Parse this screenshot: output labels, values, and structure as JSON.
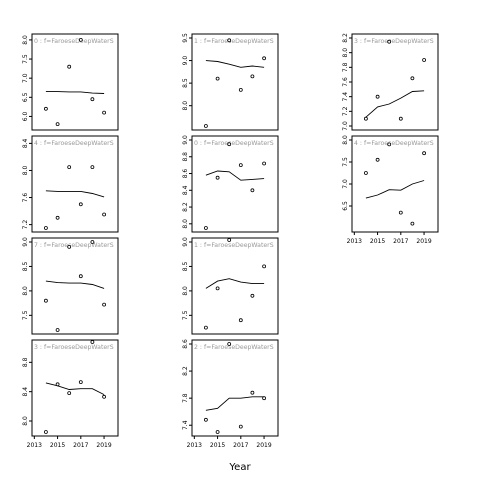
{
  "chart_data": {
    "type": "scatter",
    "xlabel": "Year",
    "panels": [
      {
        "label": "0 : f=FaroeseDeepWaterS",
        "x": [
          2014,
          2015,
          2016,
          2017,
          2018,
          2019
        ],
        "y": [
          6.2,
          5.8,
          7.3,
          8.0,
          6.45,
          6.1
        ],
        "smooth_y": [
          6.65,
          6.65,
          6.64,
          6.64,
          6.61,
          6.6
        ],
        "yticks": [
          6.0,
          6.5,
          7.0,
          7.5,
          8.0
        ],
        "ylim": [
          5.75,
          8.05
        ]
      },
      {
        "label": "1 : f=FaroeseDeepWaterS",
        "x": [
          2014,
          2015,
          2016,
          2017,
          2018,
          2019
        ],
        "y": [
          7.55,
          8.6,
          9.45,
          8.35,
          8.65,
          9.05
        ],
        "smooth_y": [
          9.0,
          8.98,
          8.92,
          8.85,
          8.88,
          8.85
        ],
        "yticks": [
          8.0,
          8.5,
          9.0,
          9.5
        ],
        "ylim": [
          7.55,
          9.5
        ]
      },
      {
        "label": "3 : f=FaroeseDeepWaterS",
        "x": [
          2014,
          2015,
          2016,
          2017,
          2018,
          2019
        ],
        "y": [
          7.1,
          7.4,
          8.15,
          7.1,
          7.65,
          7.9
        ],
        "smooth_y": [
          7.12,
          7.26,
          7.3,
          7.38,
          7.47,
          7.48
        ],
        "yticks": [
          7.0,
          7.2,
          7.4,
          7.6,
          7.8,
          8.0,
          8.2
        ],
        "ylim": [
          7.0,
          8.2
        ]
      },
      {
        "label": "4 : f=FaroeseDeepWaterS",
        "x": [
          2014,
          2015,
          2016,
          2017,
          2018,
          2019
        ],
        "y": [
          7.15,
          7.3,
          8.05,
          7.5,
          8.05,
          7.35
        ],
        "smooth_y": [
          7.7,
          7.69,
          7.69,
          7.69,
          7.66,
          7.61
        ],
        "yticks": [
          7.2,
          7.6,
          8.0,
          8.4
        ],
        "ylim": [
          7.15,
          8.45
        ]
      },
      {
        "label": "0 : f=FaroeseDeepWaterS",
        "x": [
          2014,
          2015,
          2016,
          2017,
          2018,
          2019
        ],
        "y": [
          7.95,
          8.55,
          8.95,
          8.7,
          8.4,
          8.72
        ],
        "smooth_y": [
          8.58,
          8.63,
          8.62,
          8.52,
          8.53,
          8.54
        ],
        "yticks": [
          8.0,
          8.2,
          8.4,
          8.6,
          8.8,
          9.0
        ],
        "ylim": [
          7.95,
          9.0
        ]
      },
      {
        "label": "4 : f=FaroeseDeepWaterS",
        "x": [
          2014,
          2015,
          2016,
          2017,
          2018,
          2019
        ],
        "y": [
          7.25,
          7.55,
          7.9,
          6.35,
          6.1,
          7.7
        ],
        "smooth_y": [
          6.68,
          6.75,
          6.87,
          6.86,
          7.0,
          7.08
        ],
        "yticks": [
          6.5,
          7.0,
          7.5,
          8.0
        ],
        "ylim": [
          6.0,
          8.0
        ]
      },
      {
        "label": "7 : f=FaroeseDeepWaterS",
        "x": [
          2014,
          2015,
          2016,
          2017,
          2018,
          2019
        ],
        "y": [
          7.8,
          7.2,
          8.9,
          8.3,
          9.0,
          7.72
        ],
        "smooth_y": [
          8.2,
          8.17,
          8.16,
          8.16,
          8.13,
          8.05
        ],
        "yticks": [
          7.5,
          8.0,
          8.5,
          9.0
        ],
        "ylim": [
          7.2,
          9.0
        ]
      },
      {
        "label": "1 : f=FaroeseDeepWaterS",
        "x": [
          2014,
          2015,
          2016,
          2017,
          2018,
          2019
        ],
        "y": [
          7.25,
          8.05,
          9.1,
          7.4,
          7.9,
          8.5
        ],
        "smooth_y": [
          8.05,
          8.2,
          8.25,
          8.18,
          8.15,
          8.15
        ],
        "yticks": [
          7.5,
          8.0,
          8.5,
          9.0
        ],
        "ylim": [
          7.2,
          9.0
        ]
      },
      {
        "label": "3 : f=FaroeseDeepWaterS",
        "x": [
          2014,
          2015,
          2016,
          2017,
          2018,
          2019
        ],
        "y": [
          7.85,
          8.5,
          8.38,
          8.53,
          9.08,
          8.33
        ],
        "smooth_y": [
          8.52,
          8.48,
          8.43,
          8.44,
          8.44,
          8.36
        ],
        "yticks": [
          8.0,
          8.4,
          8.8
        ],
        "ylim": [
          7.85,
          9.05
        ]
      },
      {
        "label": "2 : f=FaroeseDeepWaterS",
        "x": [
          2014,
          2015,
          2016,
          2017,
          2018,
          2019
        ],
        "y": [
          7.48,
          7.3,
          8.6,
          7.38,
          7.88,
          7.8
        ],
        "smooth_y": [
          7.62,
          7.65,
          7.8,
          7.8,
          7.82,
          7.82
        ],
        "yticks": [
          7.4,
          7.8,
          8.2,
          8.6
        ],
        "ylim": [
          7.3,
          8.6
        ]
      }
    ],
    "xticks": [
      2013,
      2015,
      2017,
      2019
    ],
    "xlim": [
      2012.8,
      2020.2
    ]
  }
}
